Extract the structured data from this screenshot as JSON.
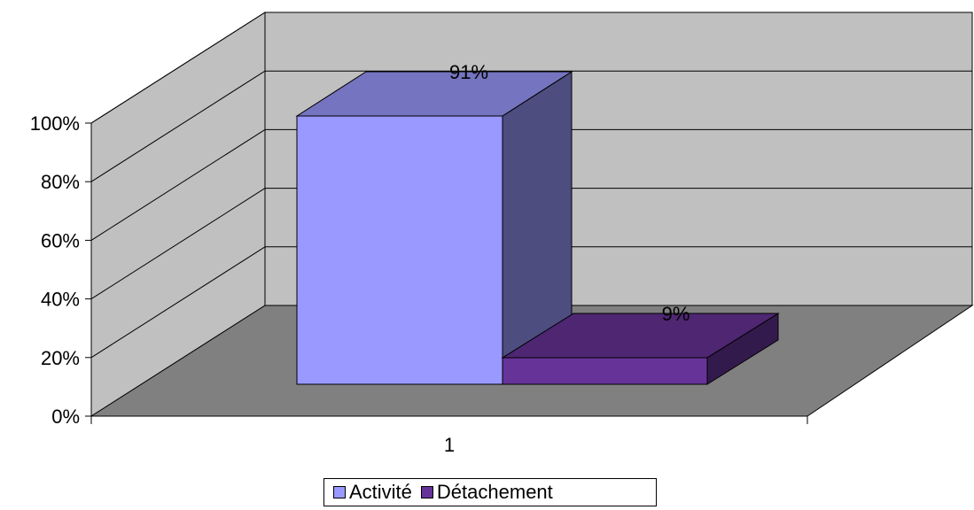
{
  "chart_data": {
    "type": "bar",
    "categories": [
      "1"
    ],
    "series": [
      {
        "name": "Activité",
        "values": [
          91
        ],
        "label": "91%"
      },
      {
        "name": "Détachement",
        "values": [
          9
        ],
        "label": "9%"
      }
    ],
    "ylim": [
      0,
      100
    ],
    "yticks": [
      "0%",
      "20%",
      "40%",
      "60%",
      "80%",
      "100%"
    ],
    "xticks": [
      "1"
    ],
    "legend_position": "bottom",
    "grid": true,
    "style": "3d"
  },
  "colors": {
    "wall": "#c0c0c0",
    "floor": "#808080",
    "activite": "#9999ff",
    "detachement": "#663399"
  }
}
